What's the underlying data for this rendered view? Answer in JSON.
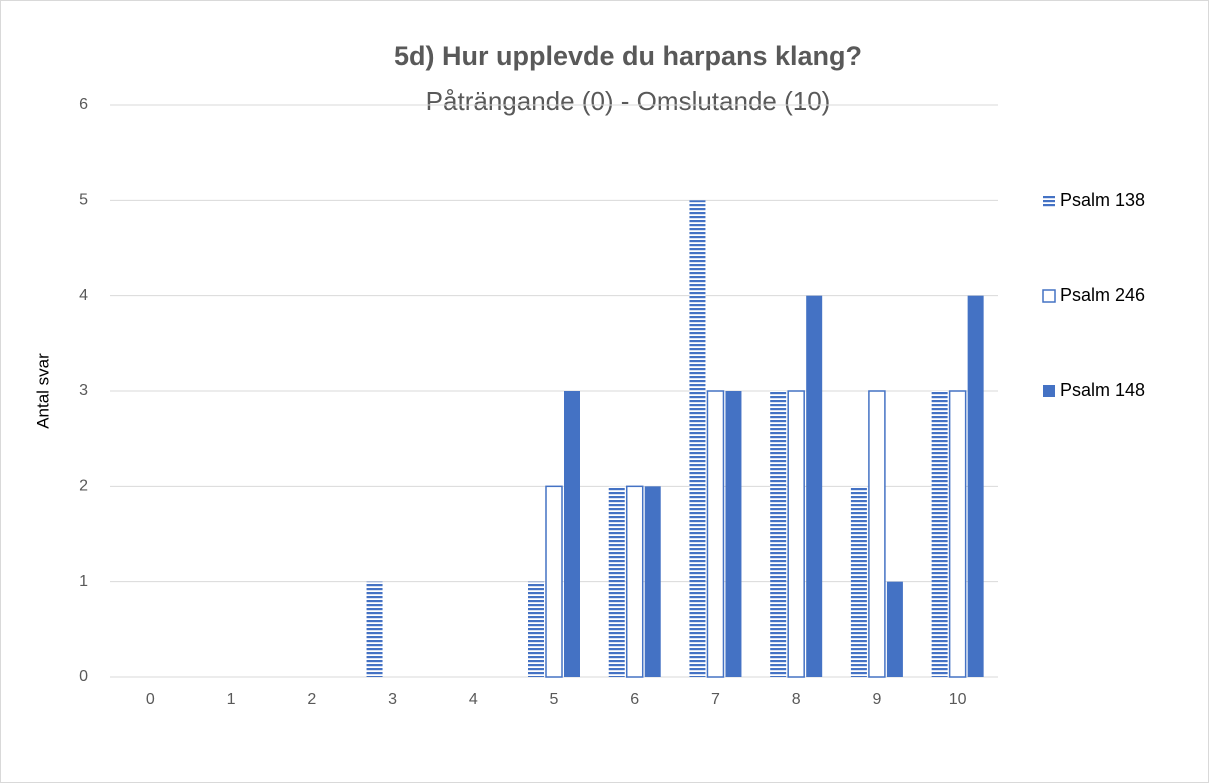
{
  "chart_data": {
    "type": "bar",
    "title": "5d) Hur upplevde du harpans klang?",
    "subtitle": "Påträngande (0) - Omslutande (10)",
    "y_label": "Antal svar",
    "categories": [
      "0",
      "1",
      "2",
      "3",
      "4",
      "5",
      "6",
      "7",
      "8",
      "9",
      "10"
    ],
    "series": [
      {
        "name": "Psalm 138",
        "color": "#4472c4",
        "style": "striped",
        "values": [
          0,
          0,
          0,
          1,
          0,
          1,
          2,
          5,
          3,
          2,
          3
        ]
      },
      {
        "name": "Psalm 246",
        "color": "#4472c4",
        "style": "outline",
        "values": [
          0,
          0,
          0,
          0,
          0,
          2,
          2,
          3,
          3,
          3,
          3
        ]
      },
      {
        "name": "Psalm 148",
        "color": "#4472c4",
        "style": "solid",
        "values": [
          0,
          0,
          0,
          0,
          0,
          3,
          2,
          3,
          4,
          1,
          4
        ]
      }
    ],
    "ylim": [
      0,
      6
    ],
    "yticks": [
      0,
      1,
      2,
      3,
      4,
      5,
      6
    ],
    "grid": true,
    "legend": "right"
  }
}
